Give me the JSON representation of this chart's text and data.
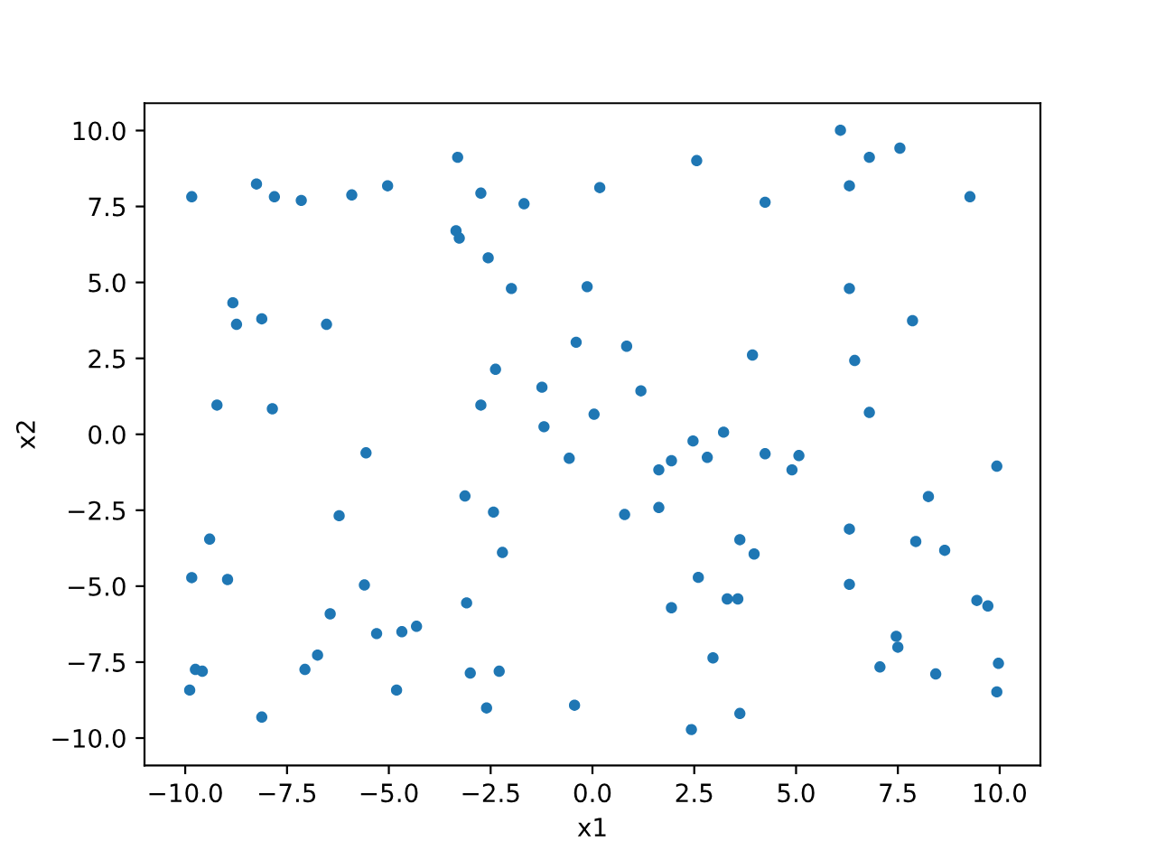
{
  "chart_data": {
    "type": "scatter",
    "xlabel": "x1",
    "ylabel": "x2",
    "xlim": [
      -11,
      11
    ],
    "ylim": [
      -10.9,
      10.9
    ],
    "xticks": [
      {
        "value": -10,
        "label": "−10.0"
      },
      {
        "value": -7.5,
        "label": "−7.5"
      },
      {
        "value": -5,
        "label": "−5.0"
      },
      {
        "value": -2.5,
        "label": "−2.5"
      },
      {
        "value": 0,
        "label": "0.0"
      },
      {
        "value": 2.5,
        "label": "2.5"
      },
      {
        "value": 5,
        "label": "5.0"
      },
      {
        "value": 7.5,
        "label": "7.5"
      },
      {
        "value": 10,
        "label": "10.0"
      }
    ],
    "yticks": [
      {
        "value": -10,
        "label": "−10.0"
      },
      {
        "value": -7.5,
        "label": "−7.5"
      },
      {
        "value": -5,
        "label": "−5.0"
      },
      {
        "value": -2.5,
        "label": "−2.5"
      },
      {
        "value": 0,
        "label": "0.0"
      },
      {
        "value": 2.5,
        "label": "2.5"
      },
      {
        "value": 5,
        "label": "5.0"
      },
      {
        "value": 7.5,
        "label": "7.5"
      },
      {
        "value": 10,
        "label": "10.0"
      }
    ],
    "grid": false,
    "marker": "circle",
    "series": [
      {
        "color": "#1f77b4",
        "x": [
          2.47,
          3.22,
          1.63,
          1.94,
          2.82,
          4.24,
          4.9,
          5.07,
          9.93,
          0.79,
          1.63,
          8.25,
          6.31,
          3.62,
          3.97,
          7.94,
          8.65,
          2.6,
          6.31,
          3.31,
          3.57,
          1.94,
          9.44,
          9.71,
          7.46,
          7.5,
          2.96,
          7.06,
          8.43,
          9.97,
          9.93,
          3.62,
          2.43,
          -1.19,
          -0.57,
          -5.56,
          -3.13,
          -2.43,
          -6.22,
          -9.4,
          -2.21,
          -9.84,
          -8.96,
          -5.6,
          -3.09,
          -6.44,
          -5.3,
          -4.68,
          -4.32,
          -6.75,
          -7.06,
          -9.75,
          -9.58,
          -3.0,
          -2.29,
          -9.89,
          -4.81,
          -2.6,
          -0.44,
          -8.12,
          -9.84,
          -8.25,
          -7.81,
          -7.15,
          -5.91,
          -5.03,
          -3.31,
          -2.74,
          -1.68,
          0.18,
          -3.35,
          -3.27,
          -2.56,
          -1.99,
          -0.13,
          -8.83,
          -8.74,
          -8.12,
          -6.53,
          -0.4,
          -2.38,
          -1.24,
          -9.22,
          -7.86,
          -2.74,
          0.04,
          6.09,
          7.55,
          6.8,
          2.56,
          6.31,
          9.27,
          4.24,
          6.31,
          7.86,
          0.84,
          3.93,
          6.44,
          1.19,
          6.8
        ],
        "values": [
          -0.22,
          0.07,
          -1.17,
          -0.87,
          -0.76,
          -0.64,
          -1.17,
          -0.7,
          -1.05,
          -2.64,
          -2.41,
          -2.05,
          -3.12,
          -3.47,
          -3.94,
          -3.53,
          -3.82,
          -4.71,
          -4.94,
          -5.42,
          -5.42,
          -5.71,
          -5.47,
          -5.65,
          -6.65,
          -7.01,
          -7.36,
          -7.66,
          -7.89,
          -7.54,
          -8.48,
          -9.19,
          -9.72,
          0.25,
          -0.79,
          -0.61,
          -2.03,
          -2.56,
          -2.68,
          -3.45,
          -3.89,
          -4.72,
          -4.78,
          -4.96,
          -5.55,
          -5.91,
          -6.56,
          -6.5,
          -6.32,
          -7.27,
          -7.74,
          -7.74,
          -7.8,
          -7.86,
          -7.8,
          -8.42,
          -8.42,
          -9.01,
          -8.92,
          -9.31,
          7.82,
          8.24,
          7.82,
          7.7,
          7.88,
          8.18,
          9.12,
          7.94,
          7.59,
          8.12,
          6.7,
          6.46,
          5.81,
          4.8,
          4.86,
          4.33,
          3.62,
          3.8,
          3.62,
          3.03,
          2.14,
          1.55,
          0.96,
          0.84,
          0.96,
          0.66,
          10.01,
          9.42,
          9.12,
          9.01,
          8.18,
          7.82,
          7.64,
          4.8,
          3.74,
          2.9,
          2.61,
          2.43,
          1.43,
          0.72
        ]
      }
    ]
  }
}
